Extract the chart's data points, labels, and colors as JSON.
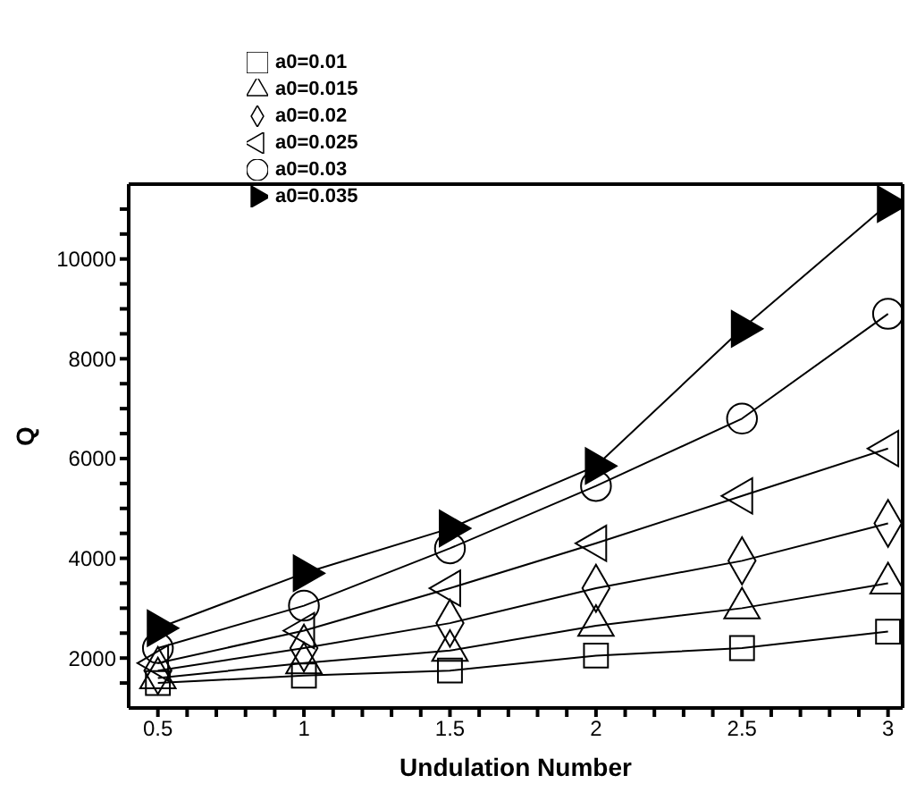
{
  "chart_data": {
    "type": "line",
    "xlabel": "Undulation Number",
    "ylabel": "Q",
    "x": [
      0.5,
      1,
      1.5,
      2,
      2.5,
      3
    ],
    "series": [
      {
        "name": "a0=0.01",
        "color": "#000000",
        "marker": "square",
        "values": [
          1500,
          1650,
          1750,
          2050,
          2200,
          2530
        ]
      },
      {
        "name": "a0=0.015",
        "color": "#000000",
        "marker": "triangle",
        "values": [
          1600,
          1900,
          2150,
          2650,
          3000,
          3500
        ]
      },
      {
        "name": "a0=0.02",
        "color": "#000000",
        "marker": "diamond",
        "values": [
          1750,
          2200,
          2700,
          3400,
          3950,
          4700
        ]
      },
      {
        "name": "a0=0.025",
        "color": "#000000",
        "marker": "triangle-left",
        "values": [
          1900,
          2550,
          3400,
          4300,
          5250,
          6200
        ]
      },
      {
        "name": "a0=0.03",
        "color": "#000000",
        "marker": "circle",
        "values": [
          2200,
          3050,
          4200,
          5450,
          6800,
          8900
        ]
      },
      {
        "name": "a0=0.035",
        "color": "#000000",
        "marker": "triangle-right",
        "values": [
          2600,
          3700,
          4600,
          5850,
          8600,
          11100
        ]
      }
    ],
    "xlim": [
      0.4,
      3.05
    ],
    "ylim": [
      1000,
      11500
    ],
    "xticks": [
      0.5,
      {
        "value": 0.6,
        "label": null
      },
      {
        "value": 0.7,
        "label": null
      },
      {
        "value": 0.8,
        "label": null
      },
      {
        "value": 0.9,
        "label": null
      },
      1,
      {
        "value": 1.1,
        "label": null
      },
      {
        "value": 1.2,
        "label": null
      },
      {
        "value": 1.3,
        "label": null
      },
      {
        "value": 1.4,
        "label": null
      },
      1.5,
      {
        "value": 1.6,
        "label": null
      },
      {
        "value": 1.7,
        "label": null
      },
      {
        "value": 1.8,
        "label": null
      },
      {
        "value": 1.9,
        "label": null
      },
      2,
      {
        "value": 2.1,
        "label": null
      },
      {
        "value": 2.2,
        "label": null
      },
      {
        "value": 2.3,
        "label": null
      },
      {
        "value": 2.4,
        "label": null
      },
      2.5,
      {
        "value": 2.6,
        "label": null
      },
      {
        "value": 2.7,
        "label": null
      },
      {
        "value": 2.8,
        "label": null
      },
      {
        "value": 2.9,
        "label": null
      },
      3
    ],
    "yticks": [
      {
        "value": 1500,
        "label": null
      },
      2000,
      {
        "value": 2500,
        "label": null
      },
      {
        "value": 3000,
        "label": null
      },
      {
        "value": 3500,
        "label": null
      },
      4000,
      {
        "value": 4500,
        "label": null
      },
      {
        "value": 5000,
        "label": null
      },
      {
        "value": 5500,
        "label": null
      },
      6000,
      {
        "value": 6500,
        "label": null
      },
      {
        "value": 7000,
        "label": null
      },
      {
        "value": 7500,
        "label": null
      },
      8000,
      {
        "value": 8500,
        "label": null
      },
      {
        "value": 9000,
        "label": null
      },
      {
        "value": 9500,
        "label": null
      },
      10000,
      {
        "value": 10500,
        "label": null
      },
      {
        "value": 11000,
        "label": null
      }
    ],
    "grid": false,
    "legend": "top left",
    "line_style": "solid"
  }
}
